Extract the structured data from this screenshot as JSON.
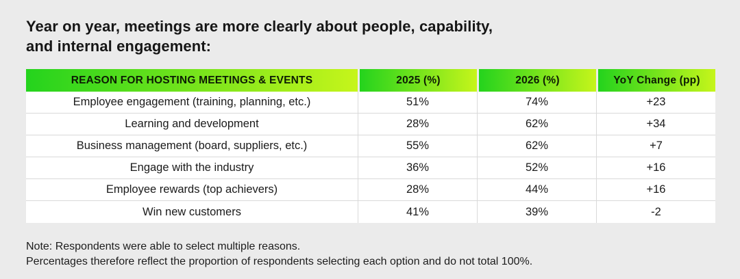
{
  "page": {
    "background_color": "#ebebeb",
    "title_line1": "Year on year, meetings are more clearly about people, capability,",
    "title_line2": "and internal engagement:"
  },
  "table": {
    "header_gradient_start": "#24d31d",
    "header_gradient_end": "#c6f51b",
    "header_text_color": "#0d1c04",
    "columns": [
      "REASON FOR HOSTING MEETINGS & EVENTS",
      "2025 (%)",
      "2026 (%)",
      "YoY Change (pp)"
    ],
    "rows": [
      [
        "Employee engagement (training, planning, etc.)",
        "51%",
        "74%",
        "+23"
      ],
      [
        "Learning and development",
        "28%",
        "62%",
        "+34"
      ],
      [
        "Business management (board, suppliers, etc.)",
        "55%",
        "62%",
        "+7"
      ],
      [
        "Engage with the industry",
        "36%",
        "52%",
        "+16"
      ],
      [
        "Employee rewards (top achievers)",
        "28%",
        "44%",
        "+16"
      ],
      [
        "Win new customers",
        "41%",
        "39%",
        "-2"
      ]
    ]
  },
  "notes": {
    "line1": "Note: Respondents were able to select multiple reasons.",
    "line2": "Percentages therefore reflect the proportion of respondents selecting each option and do not total 100%."
  },
  "chart_data": {
    "type": "table",
    "title": "Year on year, meetings are more clearly about people, capability, and internal engagement:",
    "columns": [
      "REASON FOR HOSTING MEETINGS & EVENTS",
      "2025 (%)",
      "2026 (%)",
      "YoY Change (pp)"
    ],
    "categories": [
      "Employee engagement (training, planning, etc.)",
      "Learning and development",
      "Business management (board, suppliers, etc.)",
      "Engage with the industry",
      "Employee rewards (top achievers)",
      "Win new customers"
    ],
    "series": [
      {
        "name": "2025 (%)",
        "values": [
          51,
          28,
          55,
          36,
          28,
          41
        ]
      },
      {
        "name": "2026 (%)",
        "values": [
          74,
          62,
          62,
          52,
          44,
          39
        ]
      },
      {
        "name": "YoY Change (pp)",
        "values": [
          23,
          34,
          7,
          16,
          16,
          -2
        ]
      }
    ],
    "note": "Note: Respondents were able to select multiple reasons. Percentages therefore reflect the proportion of respondents selecting each option and do not total 100%."
  }
}
